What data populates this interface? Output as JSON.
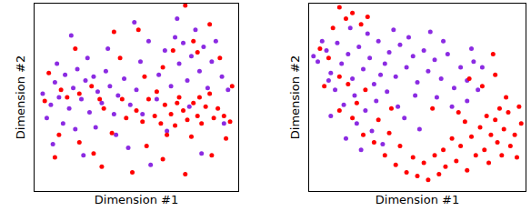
{
  "chart_data": [
    {
      "type": "scatter",
      "x_label": "Dimension #1",
      "y_label": "Dimension #2",
      "xlim": [
        0,
        10
      ],
      "ylim": [
        0,
        10
      ],
      "tick_labels": false,
      "grid": false,
      "series": [
        {
          "color": "#8b2be2",
          "marker": "circle",
          "x": [
            0.4,
            0.8,
            1.0,
            1.2,
            1.5,
            1.7,
            1.9,
            2.1,
            2.3,
            2.5,
            2.7,
            2.9,
            3.1,
            3.3,
            3.5,
            3.7,
            3.9,
            4.1,
            4.4,
            4.7,
            1.4,
            2.0,
            0.6,
            3.0,
            4.0,
            5.0,
            5.3,
            1.1,
            2.6,
            3.6,
            6.1,
            6.4,
            6.7,
            6.9,
            7.1,
            7.3,
            7.5,
            7.7,
            7.9,
            8.1,
            8.3,
            8.5,
            8.7,
            8.9,
            9.2,
            7.0,
            7.6,
            6.0,
            5.6,
            9.5,
            0.9,
            2.4,
            4.6,
            5.7,
            6.5,
            8.2,
            9.3,
            5.2,
            4.9,
            1.8
          ],
          "y": [
            5.2,
            4.6,
            5.8,
            5.0,
            6.2,
            4.4,
            5.5,
            6.5,
            4.9,
            5.9,
            4.2,
            6.1,
            5.3,
            4.7,
            6.4,
            5.6,
            4.1,
            5.1,
            6.0,
            4.6,
            3.6,
            3.3,
            3.9,
            3.4,
            3.0,
            5.4,
            4.1,
            6.8,
            7.1,
            7.6,
            6.2,
            7.5,
            5.6,
            8.2,
            6.8,
            7.9,
            5.9,
            7.2,
            8.6,
            6.4,
            7.7,
            5.5,
            6.9,
            8.0,
            6.1,
            9.2,
            4.5,
            4.9,
            8.0,
            5.4,
            2.5,
            1.9,
            2.3,
            1.4,
            3.2,
            2.0,
            3.6,
            6.9,
            9.0,
            8.3
          ]
        },
        {
          "color": "#ff0000",
          "marker": "circle",
          "x": [
            5.0,
            5.3,
            5.6,
            5.9,
            6.2,
            6.4,
            6.7,
            6.9,
            7.1,
            7.3,
            7.5,
            7.8,
            8.0,
            8.2,
            8.4,
            8.6,
            8.8,
            9.0,
            9.3,
            9.6,
            6.0,
            7.0,
            8.1,
            6.5,
            7.7,
            0.5,
            1.3,
            1.6,
            2.2,
            2.8,
            3.2,
            3.4,
            4.3,
            4.5,
            3.8,
            2.2,
            1.0,
            3.3,
            4.8,
            5.5,
            6.3,
            7.4,
            8.7,
            9.4,
            6.8,
            7.8,
            8.0,
            7.4,
            8.6,
            5.4,
            4.2,
            2.0,
            0.7,
            9.1,
            6.3,
            5.1,
            3.9,
            1.2,
            2.9,
            9.7
          ],
          "y": [
            4.3,
            3.7,
            4.9,
            4.0,
            3.6,
            4.6,
            4.1,
            3.5,
            5.0,
            4.3,
            3.8,
            4.7,
            4.0,
            3.6,
            4.5,
            5.2,
            3.9,
            4.4,
            4.0,
            3.7,
            5.3,
            4.7,
            5.0,
            3.0,
            2.9,
            4.8,
            5.4,
            5.0,
            5.2,
            5.6,
            4.9,
            4.4,
            4.9,
            3.9,
            3.1,
            2.6,
            1.8,
            1.3,
            1.0,
            2.4,
            1.7,
            0.9,
            1.9,
            2.8,
            7.5,
            8.0,
            7.4,
            9.9,
            8.9,
            6.1,
            7.1,
            7.6,
            6.3,
            7.1,
            6.6,
            8.6,
            8.5,
            3.0,
            2.0,
            5.6
          ]
        }
      ]
    },
    {
      "type": "scatter",
      "x_label": "Dimension #1",
      "y_label": "Dimension #2",
      "xlim": [
        0,
        10
      ],
      "ylim": [
        0,
        10
      ],
      "tick_labels": false,
      "grid": false,
      "series": [
        {
          "color": "#8b2be2",
          "marker": "circle",
          "x": [
            0.4,
            0.8,
            1.0,
            1.3,
            1.5,
            1.8,
            2.0,
            2.3,
            2.5,
            2.8,
            3.0,
            3.2,
            3.5,
            3.7,
            4.0,
            4.2,
            4.5,
            4.8,
            5.0,
            5.3,
            5.5,
            5.8,
            6.1,
            6.4,
            6.7,
            7.0,
            7.3,
            7.6,
            1.2,
            1.6,
            2.1,
            2.6,
            3.1,
            3.6,
            4.1,
            2.2,
            2.9,
            3.4,
            1.9,
            3.9,
            4.6,
            0.6,
            5.9,
            6.6,
            7.3,
            7.8,
            8.0,
            4.4,
            5.1,
            1.0,
            1.7,
            0.2,
            2.7,
            5.6,
            6.2,
            7.5,
            3.3,
            4.9,
            0.9,
            2.4
          ],
          "y": [
            6.9,
            7.5,
            6.3,
            7.9,
            6.8,
            7.3,
            6.0,
            7.7,
            6.5,
            7.1,
            5.7,
            8.0,
            6.8,
            7.4,
            6.1,
            7.8,
            6.6,
            7.2,
            5.8,
            7.5,
            6.4,
            7.0,
            6.0,
            7.3,
            5.5,
            6.6,
            5.9,
            6.9,
            5.4,
            4.6,
            5.1,
            4.3,
            4.8,
            5.3,
            4.5,
            3.6,
            3.2,
            2.5,
            8.7,
            8.6,
            8.2,
            8.0,
            5.0,
            4.5,
            4.8,
            5.4,
            6.6,
            3.9,
            3.3,
            4.0,
            2.8,
            7.2,
            8.4,
            8.5,
            8.0,
            7.6,
            6.2,
            5.1,
            5.9,
            2.2
          ]
        },
        {
          "color": "#ff0000",
          "marker": "circle",
          "x": [
            1.4,
            1.7,
            2.0,
            2.4,
            1.1,
            2.7,
            0.5,
            0.9,
            1.4,
            0.7,
            1.8,
            2.2,
            2.6,
            1.4,
            2.0,
            2.5,
            3.0,
            3.5,
            4.0,
            4.5,
            5.0,
            5.5,
            6.0,
            3.7,
            4.2,
            4.8,
            5.3,
            5.8,
            6.3,
            6.8,
            7.0,
            7.3,
            7.5,
            7.7,
            7.9,
            8.1,
            8.3,
            8.4,
            8.6,
            8.7,
            8.9,
            9.0,
            9.2,
            9.3,
            9.5,
            9.6,
            9.8,
            9.7,
            8.8,
            8.2,
            7.2,
            6.6,
            6.2,
            8.0,
            8.6,
            7.4,
            6.9,
            9.1,
            3.8,
            3.2,
            5.7,
            8.5
          ],
          "y": [
            9.8,
            9.2,
            9.5,
            8.9,
            8.7,
            9.3,
            7.6,
            7.1,
            6.1,
            5.6,
            5.7,
            4.7,
            5.4,
            4.3,
            3.9,
            3.0,
            2.6,
            1.9,
            1.4,
            1.0,
            0.8,
            0.6,
            0.9,
            3.1,
            2.4,
            1.8,
            1.5,
            1.9,
            1.3,
            1.6,
            2.4,
            1.1,
            2.9,
            1.9,
            3.4,
            2.2,
            1.5,
            3.0,
            3.8,
            2.6,
            1.9,
            3.3,
            4.2,
            2.4,
            3.0,
            1.8,
            3.6,
            4.5,
            4.4,
            4.0,
            3.7,
            2.8,
            2.2,
            5.6,
            6.2,
            6.0,
            4.2,
            5.0,
            4.4,
            3.8,
            4.4,
            7.3
          ]
        }
      ]
    }
  ]
}
